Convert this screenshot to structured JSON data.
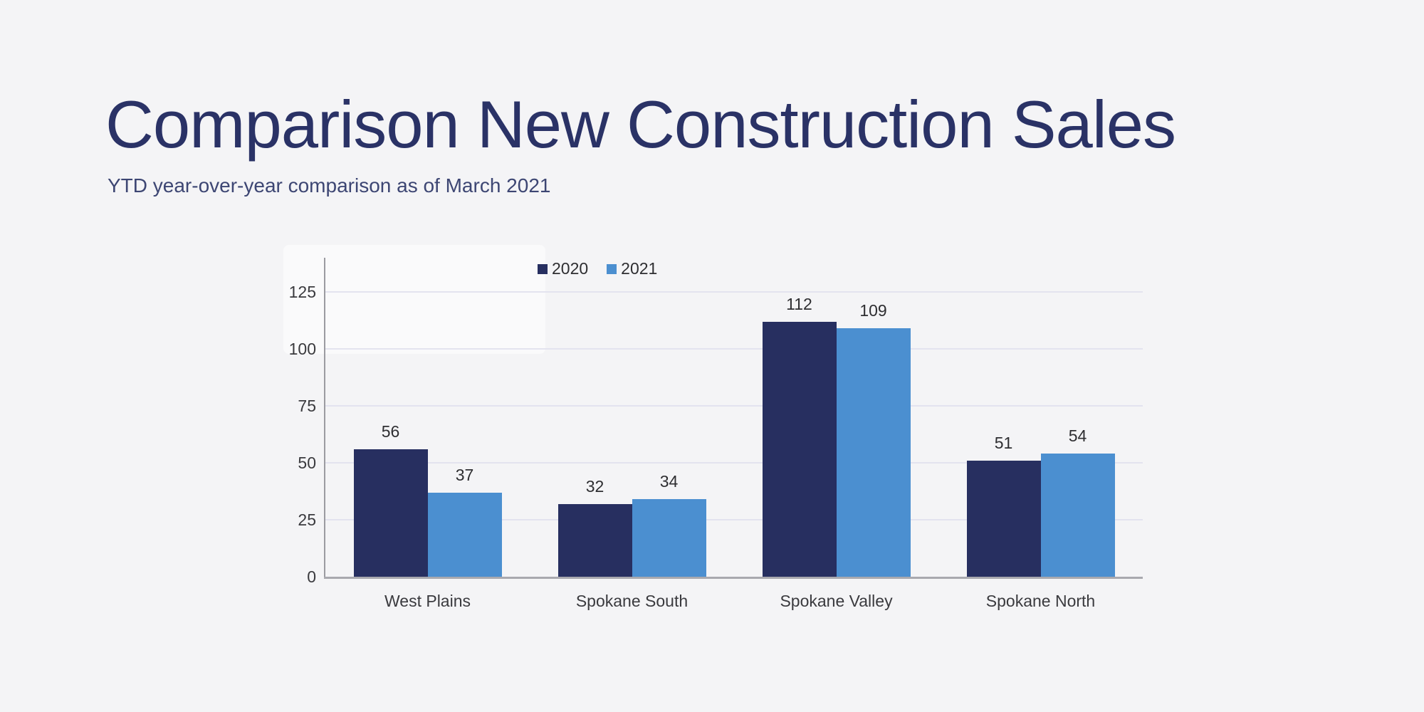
{
  "page": {
    "background": "#f4f4f6"
  },
  "header": {
    "title": "Comparison New Construction Sales",
    "title_color": "#2a3266",
    "subtitle": "YTD year-over-year comparison as of March 2021",
    "subtitle_color": "#3d4673"
  },
  "chart_data": {
    "type": "bar",
    "title": "",
    "categories": [
      "West Plains",
      "Spokane South",
      "Spokane Valley",
      "Spokane North"
    ],
    "series": [
      {
        "name": "2020",
        "color": "#272f60",
        "values": [
          56,
          32,
          112,
          51
        ]
      },
      {
        "name": "2021",
        "color": "#4b8fd0",
        "values": [
          37,
          34,
          109,
          54
        ]
      }
    ],
    "yticks": [
      0,
      25,
      50,
      75,
      100,
      125
    ],
    "ylim": [
      0,
      140
    ],
    "grid": true,
    "grid_color": "#e3e3ef",
    "axis_color_y": "#9b9ba1",
    "axis_color_x": "#a9a9af",
    "tick_label_color": "#3a3a3e",
    "value_label_color": "#2e2e31",
    "category_label_color": "#3a3a3e",
    "legend_position": "top",
    "value_labels": true
  }
}
